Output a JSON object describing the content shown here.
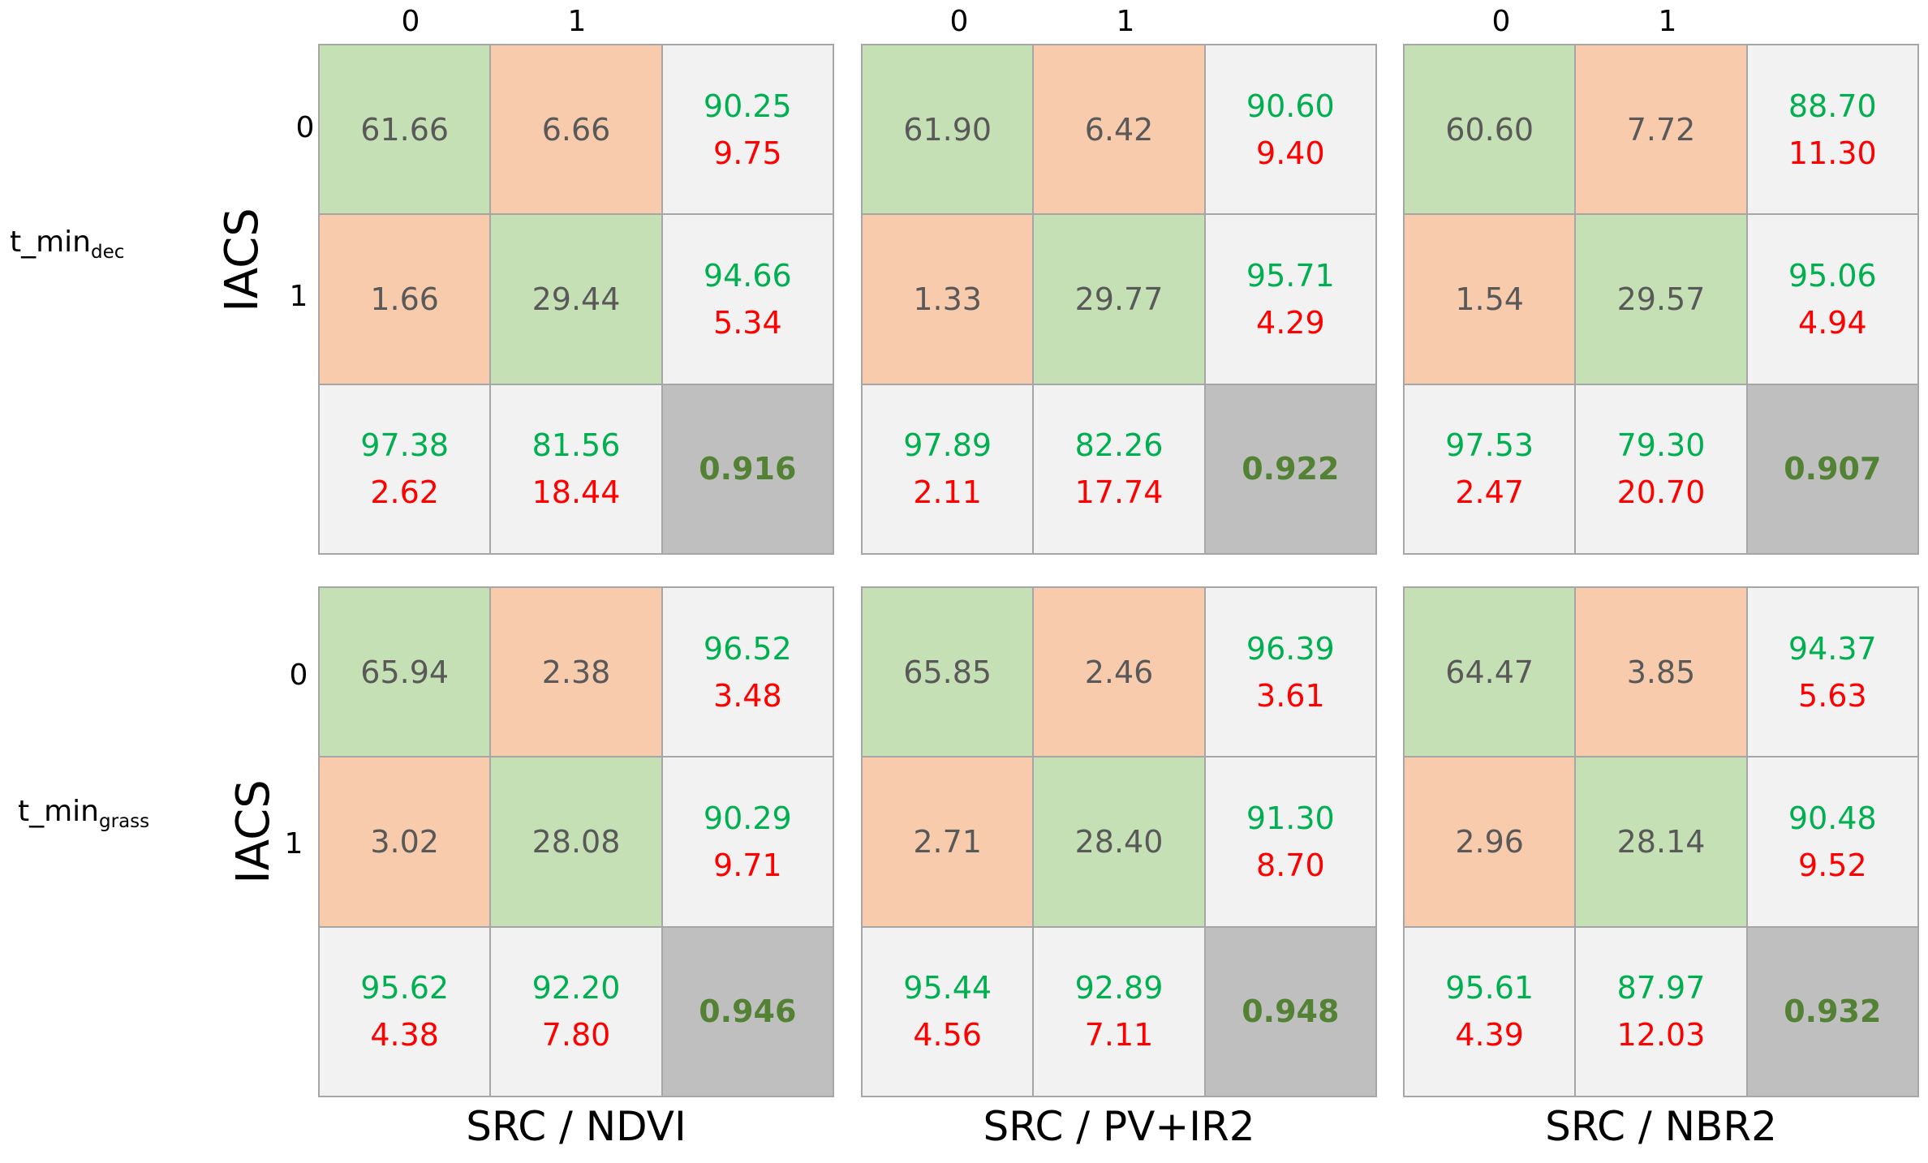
{
  "column_indices": [
    "0",
    "1"
  ],
  "row_indices": [
    "0",
    "1"
  ],
  "iacs_label": "IACS",
  "row_labels": [
    {
      "main": "t_min",
      "sub": "dec"
    },
    {
      "main": "t_min",
      "sub": "grass"
    }
  ],
  "methods": [
    "SRC / NDVI",
    "SRC / PV+IR2",
    "SRC / NBR2"
  ],
  "colors": {
    "correct": "#c5e0b4",
    "error": "#f8cbad",
    "stat": "#f2f2f2",
    "kappa": "#bfbfbf",
    "good": "#00b050",
    "bad": "#ff0000"
  },
  "matrices": [
    [
      {
        "cells": [
          "61.66",
          "6.66",
          "1.66",
          "29.44"
        ],
        "row_stats": [
          [
            "90.25",
            "9.75"
          ],
          [
            "94.66",
            "5.34"
          ]
        ],
        "col_stats": [
          [
            "97.38",
            "2.62"
          ],
          [
            "81.56",
            "18.44"
          ]
        ],
        "kappa": "0.916"
      },
      {
        "cells": [
          "61.90",
          "6.42",
          "1.33",
          "29.77"
        ],
        "row_stats": [
          [
            "90.60",
            "9.40"
          ],
          [
            "95.71",
            "4.29"
          ]
        ],
        "col_stats": [
          [
            "97.89",
            "2.11"
          ],
          [
            "82.26",
            "17.74"
          ]
        ],
        "kappa": "0.922"
      },
      {
        "cells": [
          "60.60",
          "7.72",
          "1.54",
          "29.57"
        ],
        "row_stats": [
          [
            "88.70",
            "11.30"
          ],
          [
            "95.06",
            "4.94"
          ]
        ],
        "col_stats": [
          [
            "97.53",
            "2.47"
          ],
          [
            "79.30",
            "20.70"
          ]
        ],
        "kappa": "0.907"
      }
    ],
    [
      {
        "cells": [
          "65.94",
          "2.38",
          "3.02",
          "28.08"
        ],
        "row_stats": [
          [
            "96.52",
            "3.48"
          ],
          [
            "90.29",
            "9.71"
          ]
        ],
        "col_stats": [
          [
            "95.62",
            "4.38"
          ],
          [
            "92.20",
            "7.80"
          ]
        ],
        "kappa": "0.946"
      },
      {
        "cells": [
          "65.85",
          "2.46",
          "2.71",
          "28.40"
        ],
        "row_stats": [
          [
            "96.39",
            "3.61"
          ],
          [
            "91.30",
            "8.70"
          ]
        ],
        "col_stats": [
          [
            "95.44",
            "4.56"
          ],
          [
            "92.89",
            "7.11"
          ]
        ],
        "kappa": "0.948"
      },
      {
        "cells": [
          "64.47",
          "3.85",
          "2.96",
          "28.14"
        ],
        "row_stats": [
          [
            "94.37",
            "5.63"
          ],
          [
            "90.48",
            "9.52"
          ]
        ],
        "col_stats": [
          [
            "95.61",
            "4.39"
          ],
          [
            "87.97",
            "12.03"
          ]
        ],
        "kappa": "0.932"
      }
    ]
  ]
}
